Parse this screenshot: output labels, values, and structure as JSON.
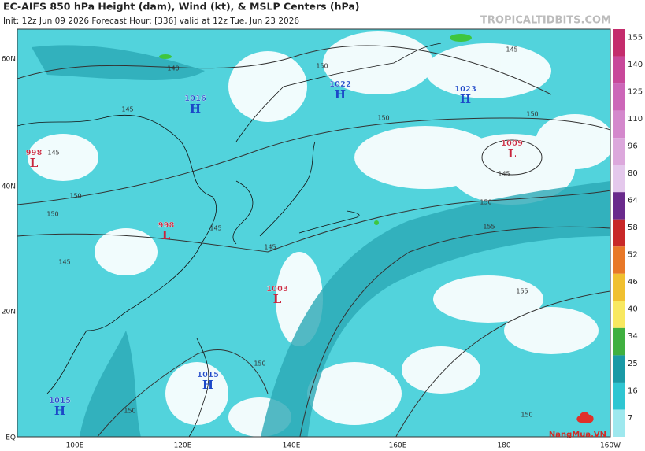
{
  "header": {
    "title": "EC-AIFS 850 hPa Height (dam), Wind (kt), & MSLP Centers (hPa)",
    "subtitle": "Init: 12z Jun 09 2026   Forecast Hour: [336]   valid at 12z Tue, Jun 23 2026",
    "watermark": "TROPICALTIDBITS.COM"
  },
  "map": {
    "lat_labels": [
      "60N",
      "40N",
      "20N",
      "EQ"
    ],
    "lon_labels": [
      "100E",
      "120E",
      "140E",
      "160E",
      "180",
      "160W"
    ],
    "pressure_centers": [
      {
        "value": 998,
        "type": "L"
      },
      {
        "value": 1016,
        "type": "H"
      },
      {
        "value": 1022,
        "type": "H"
      },
      {
        "value": 1023,
        "type": "H"
      },
      {
        "value": 1009,
        "type": "L"
      },
      {
        "value": 998,
        "type": "L"
      },
      {
        "value": 1003,
        "type": "L"
      },
      {
        "value": 1015,
        "type": "H"
      },
      {
        "value": 1015,
        "type": "H"
      }
    ],
    "contour_labels": [
      140,
      145,
      150,
      145,
      150,
      150,
      145,
      145,
      150,
      150,
      150,
      155,
      145,
      145,
      145,
      155,
      150,
      150,
      150
    ]
  },
  "colorbar": {
    "ticks": [
      155,
      140,
      125,
      110,
      96,
      80,
      64,
      58,
      52,
      46,
      40,
      34,
      25,
      16,
      7
    ]
  },
  "logo": {
    "text": "NangMua.VN"
  }
}
